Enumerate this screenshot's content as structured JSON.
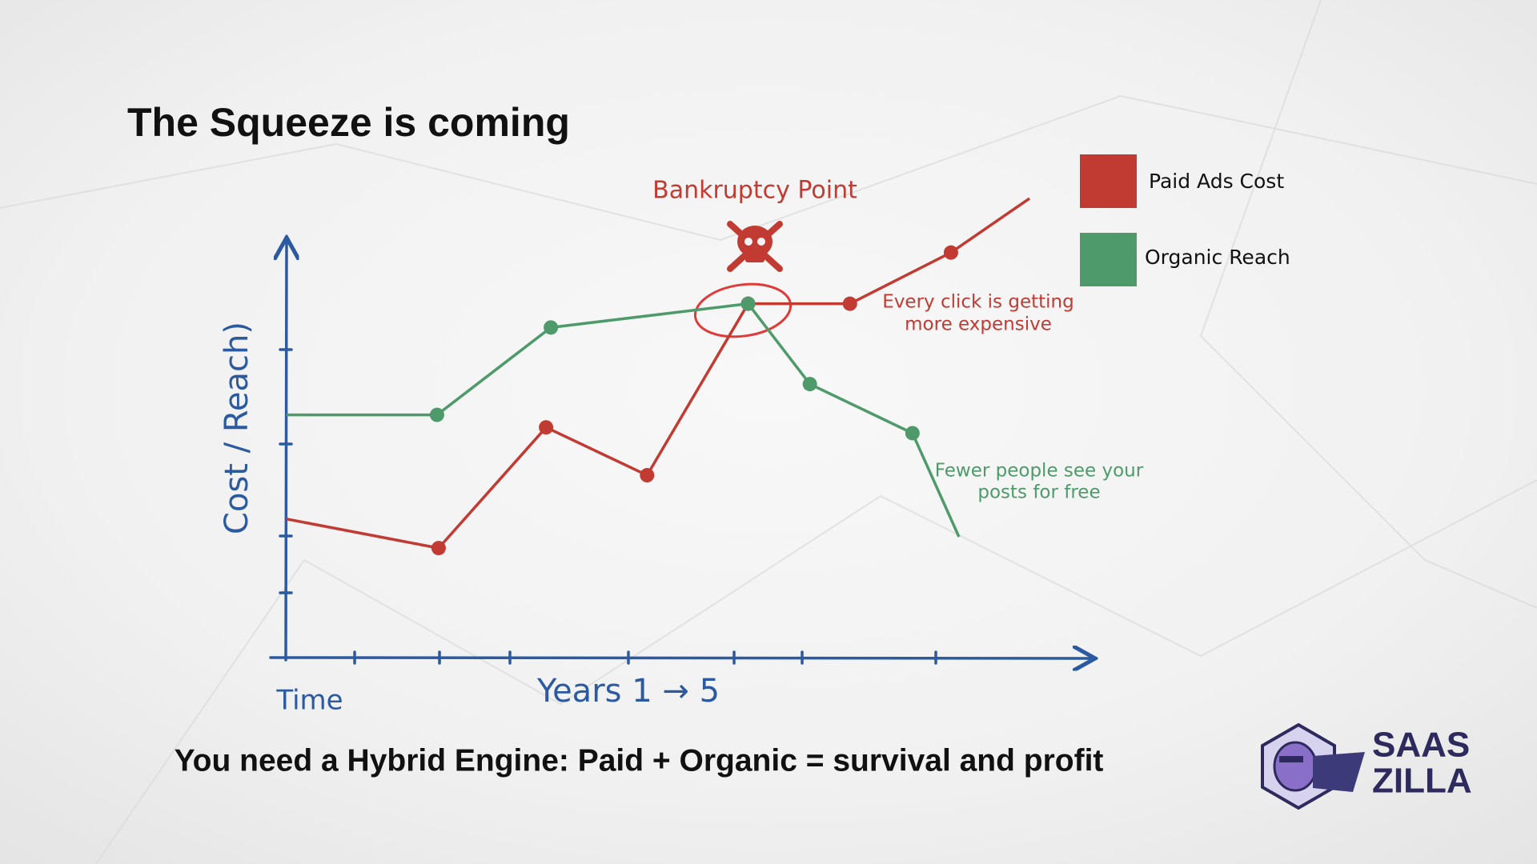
{
  "chart_data": {
    "type": "line",
    "title": "The Squeeze is coming",
    "xlabel": "Years 1 → 5",
    "xorigin_label": "Time",
    "ylabel": "Cost / Reach)",
    "xlim": [
      0,
      100
    ],
    "ylim": [
      0,
      115
    ],
    "series": [
      {
        "name": "Paid Ads Cost",
        "color": "#c23b33",
        "x": [
          0,
          19,
          32.4,
          45,
          57.6,
          70.3,
          82.9,
          92.7
        ],
        "values": [
          33,
          26,
          55,
          43.5,
          84.7,
          84.7,
          97,
          110
        ]
      },
      {
        "name": "Organic Reach",
        "color": "#4e9a6a",
        "x": [
          0,
          18.8,
          33,
          57.6,
          65.3,
          78.1,
          83.9
        ],
        "values": [
          58,
          58,
          79,
          84.7,
          65.4,
          53.6,
          28.7
        ]
      }
    ],
    "annotations": [
      {
        "lines": [
          "Bankruptcy Point"
        ],
        "color": "#c23b33"
      },
      {
        "lines": [
          "Every click is getting",
          "more expensive"
        ],
        "color": "#c23b33"
      },
      {
        "lines": [
          "Fewer people see your",
          "posts for free"
        ],
        "color": "#4e9a6a"
      }
    ]
  },
  "footer": "You need a Hybrid Engine: Paid + Organic = survival and profit",
  "logo": [
    "SAAS",
    "ZILLA"
  ]
}
